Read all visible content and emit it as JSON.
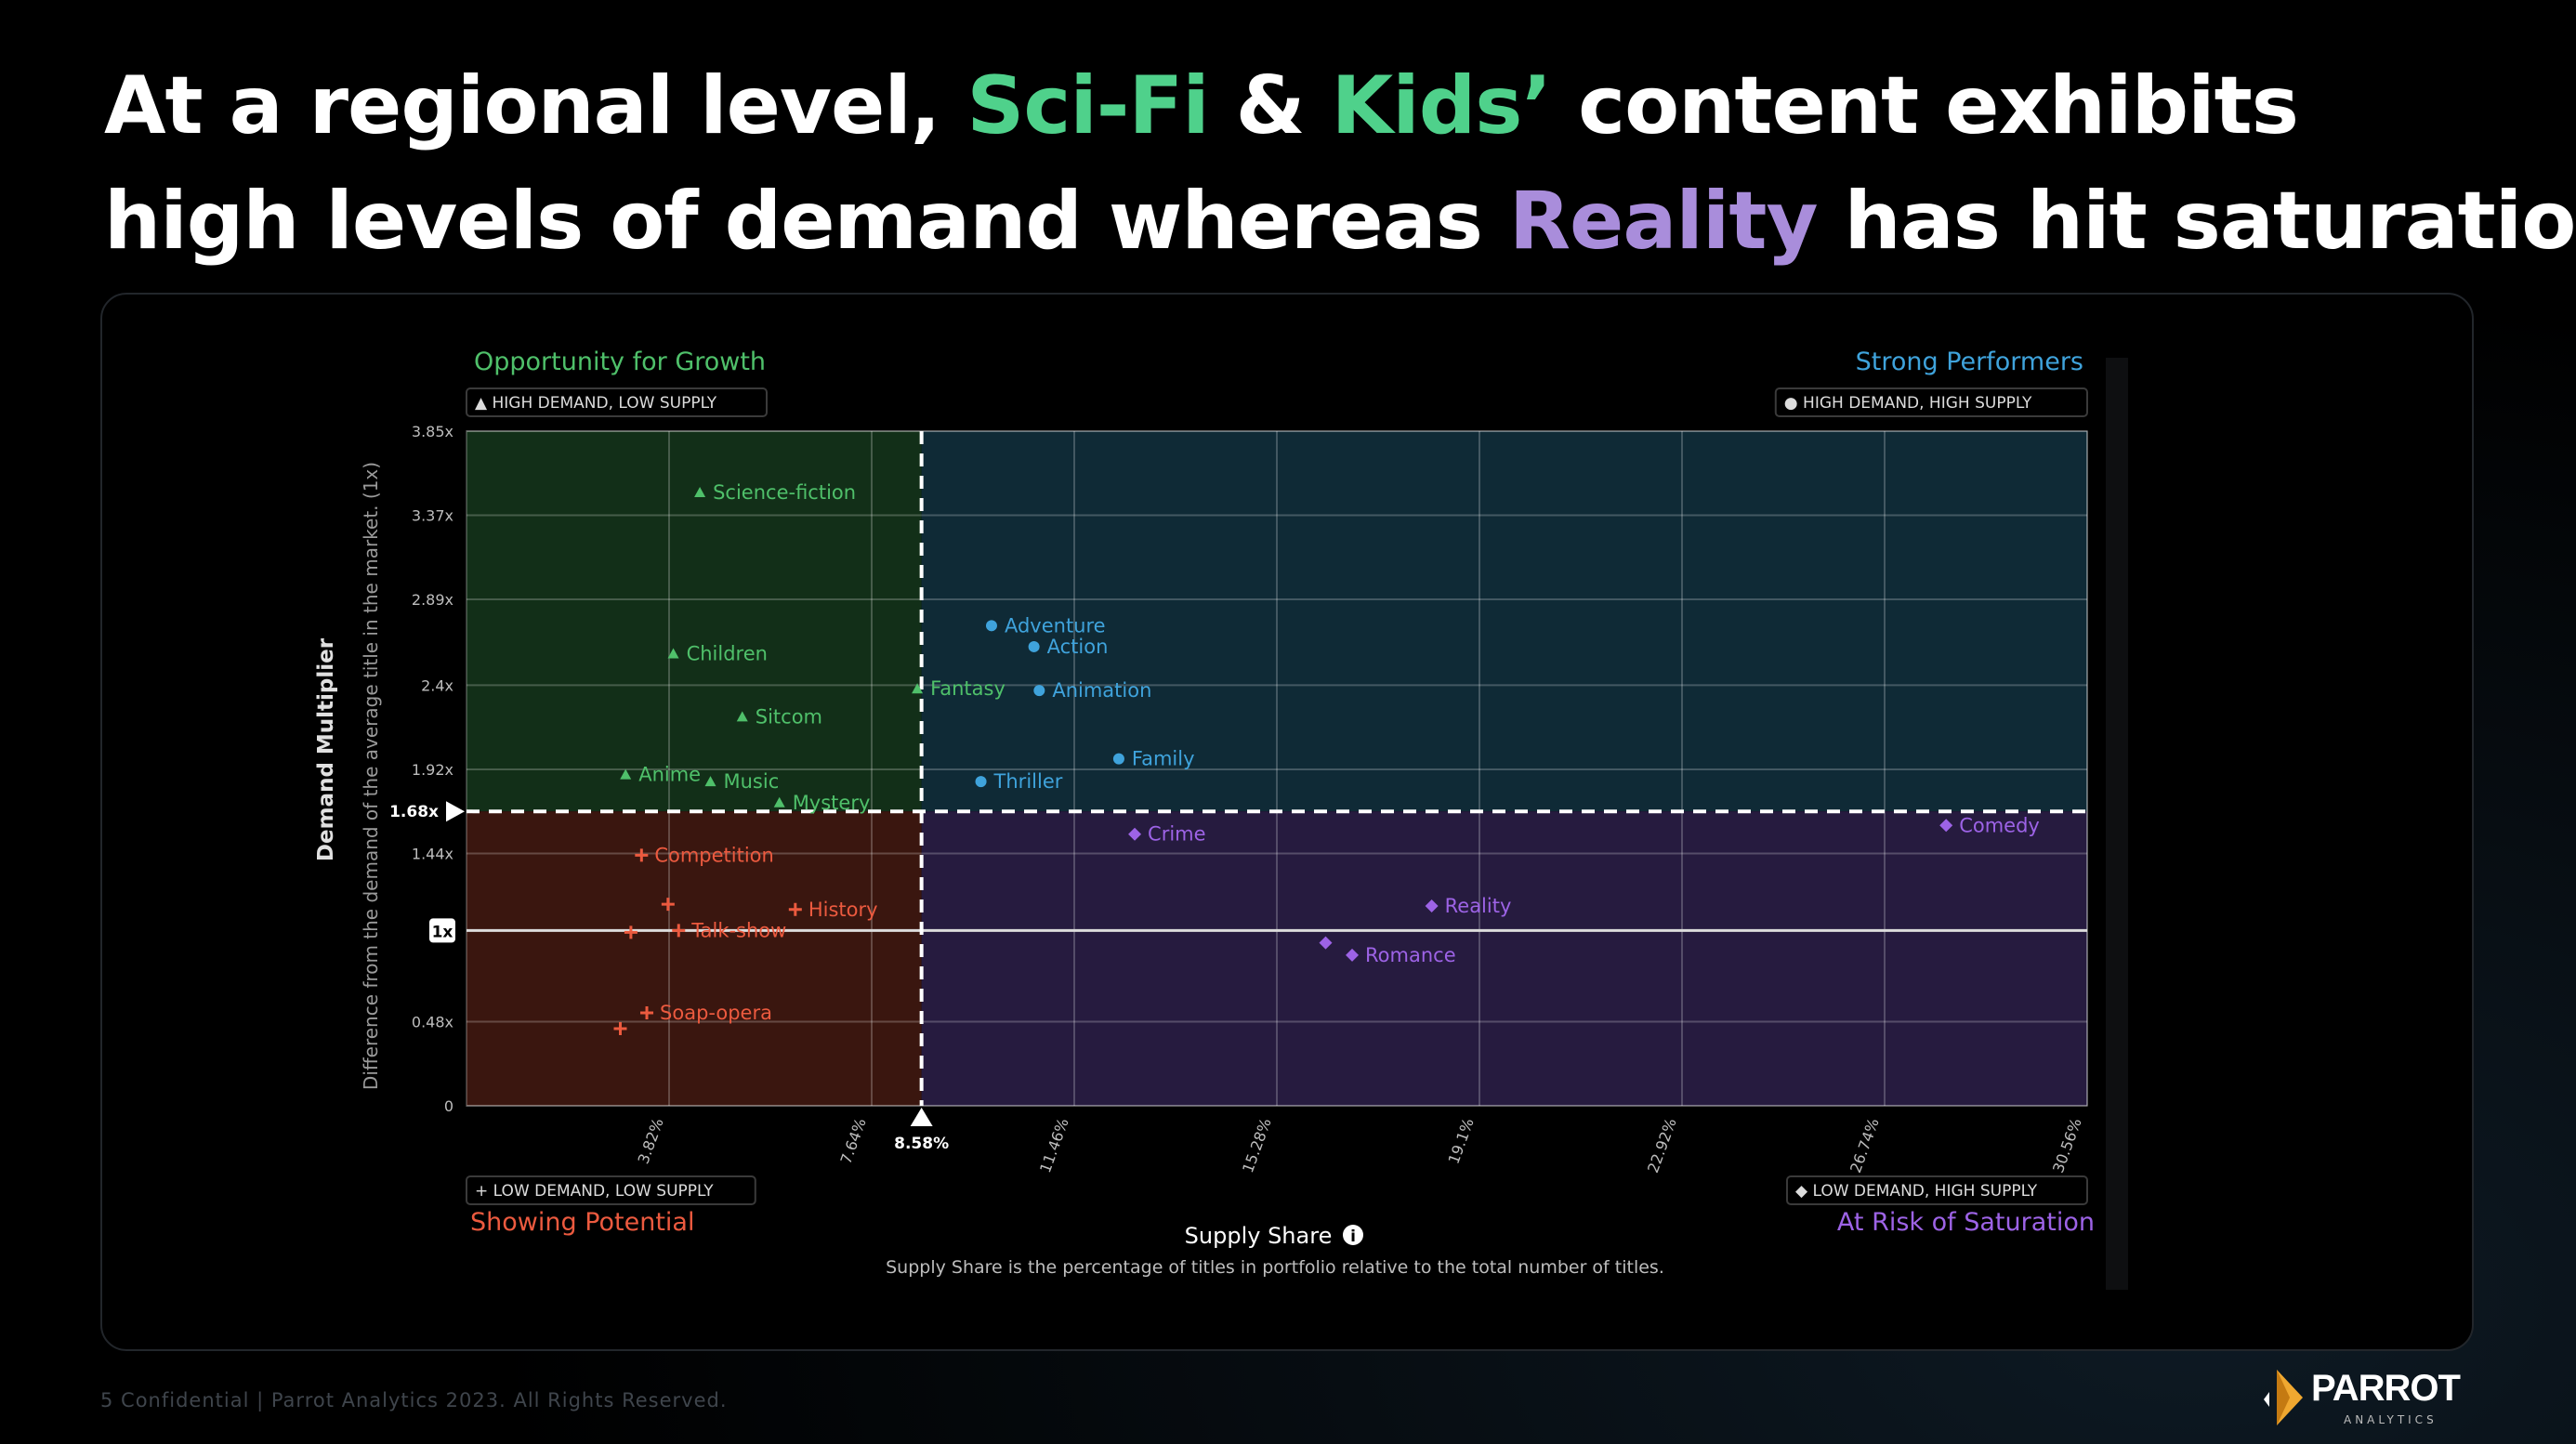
{
  "slide": {
    "title_line1": [
      {
        "text": "At a regional level, ",
        "color": "#ffffff"
      },
      {
        "text": "Sci-Fi",
        "color": "#4fd18b"
      },
      {
        "text": " & ",
        "color": "#ffffff"
      },
      {
        "text": "Kids’",
        "color": "#4fd18b"
      },
      {
        "text": " content exhibits",
        "color": "#ffffff"
      }
    ],
    "title_line2": [
      {
        "text": "high levels of demand whereas ",
        "color": "#ffffff"
      },
      {
        "text": "Reality",
        "color": "#a98ddb"
      },
      {
        "text": " has hit saturation",
        "color": "#ffffff"
      }
    ],
    "footer": "5  Confidential  |  Parrot Analytics 2023. All Rights Reserved.",
    "logo": {
      "name": "PARROT",
      "sub": "ANALYTICS",
      "icon": "parrot-logo-icon"
    }
  },
  "chart_data": {
    "type": "scatter",
    "title": "",
    "xlabel": "Supply Share",
    "xlabel_info_icon": "info-icon",
    "x_note": "Supply Share is the percentage of titles in portfolio relative to the total number of titles.",
    "ylabel": "Demand Multiplier",
    "ylabel_sub": "Difference from the demand of the average title in the market. (1x)",
    "xlim": [
      0,
      30.56
    ],
    "ylim": [
      0,
      3.85
    ],
    "x_ticks": [
      {
        "v": 3.82,
        "label": "3.82%"
      },
      {
        "v": 7.64,
        "label": "7.64%"
      },
      {
        "v": 11.46,
        "label": "11.46%"
      },
      {
        "v": 15.28,
        "label": "15.28%"
      },
      {
        "v": 19.1,
        "label": "19.1%"
      },
      {
        "v": 22.92,
        "label": "22.92%"
      },
      {
        "v": 26.74,
        "label": "26.74%"
      },
      {
        "v": 30.56,
        "label": "30.56%"
      }
    ],
    "y_ticks": [
      {
        "v": 0,
        "label": "0"
      },
      {
        "v": 0.48,
        "label": "0.48x"
      },
      {
        "v": 1.44,
        "label": "1.44x"
      },
      {
        "v": 1.92,
        "label": "1.92x"
      },
      {
        "v": 2.4,
        "label": "2.4x"
      },
      {
        "v": 2.89,
        "label": "2.89x"
      },
      {
        "v": 3.37,
        "label": "3.37x"
      },
      {
        "v": 3.85,
        "label": "3.85x"
      }
    ],
    "x_threshold": {
      "v": 8.58,
      "label": "8.58%"
    },
    "y_threshold": {
      "v": 1.68,
      "label": "1.68x"
    },
    "y_baseline": {
      "v": 1.0,
      "label": "1x"
    },
    "quadrants": {
      "top_left": {
        "title": "Opportunity for Growth",
        "badge": "▲ HIGH DEMAND, LOW SUPPLY",
        "color": "#4fc06a",
        "fill": "#122f18"
      },
      "top_right": {
        "title": "Strong Performers",
        "badge": "● HIGH DEMAND, HIGH SUPPLY",
        "color": "#3fa3dc",
        "fill": "#0f2a36"
      },
      "bottom_left": {
        "title": "Showing Potential",
        "badge": "+ LOW DEMAND, LOW SUPPLY",
        "color": "#ec5a3f",
        "fill": "#3a160f"
      },
      "bottom_right": {
        "title": "At Risk of Saturation",
        "badge": "◆ LOW DEMAND, HIGH SUPPLY",
        "color": "#9d63e6",
        "fill": "#261b3f"
      }
    },
    "points": [
      {
        "label": "Science-fiction",
        "x": 4.4,
        "y": 3.5,
        "group": "top_left"
      },
      {
        "label": "Children",
        "x": 3.9,
        "y": 2.58,
        "group": "top_left"
      },
      {
        "label": "Sitcom",
        "x": 5.2,
        "y": 2.22,
        "group": "top_left"
      },
      {
        "label": "Fantasy",
        "x": 8.5,
        "y": 2.38,
        "group": "top_left"
      },
      {
        "label": "Anime",
        "x": 3.0,
        "y": 1.89,
        "group": "top_left"
      },
      {
        "label": "Music",
        "x": 4.6,
        "y": 1.85,
        "group": "top_left"
      },
      {
        "label": "Mystery",
        "x": 5.9,
        "y": 1.73,
        "group": "top_left"
      },
      {
        "label": "Adventure",
        "x": 9.9,
        "y": 2.74,
        "group": "top_right"
      },
      {
        "label": "Action",
        "x": 10.7,
        "y": 2.62,
        "group": "top_right"
      },
      {
        "label": "Animation",
        "x": 10.8,
        "y": 2.37,
        "group": "top_right"
      },
      {
        "label": "Family",
        "x": 12.3,
        "y": 1.98,
        "group": "top_right"
      },
      {
        "label": "Thriller",
        "x": 9.7,
        "y": 1.85,
        "group": "top_right"
      },
      {
        "label": "Competition",
        "x": 3.3,
        "y": 1.43,
        "group": "bottom_left"
      },
      {
        "label": "",
        "x": 3.8,
        "y": 1.15,
        "group": "bottom_left"
      },
      {
        "label": "History",
        "x": 6.2,
        "y": 1.12,
        "group": "bottom_left"
      },
      {
        "label": "",
        "x": 3.1,
        "y": 0.99,
        "group": "bottom_left"
      },
      {
        "label": "Talk-show",
        "x": 4.0,
        "y": 1.0,
        "group": "bottom_left"
      },
      {
        "label": "Soap-opera",
        "x": 3.4,
        "y": 0.53,
        "group": "bottom_left"
      },
      {
        "label": "",
        "x": 2.9,
        "y": 0.44,
        "group": "bottom_left"
      },
      {
        "label": "Crime",
        "x": 12.6,
        "y": 1.55,
        "group": "bottom_right"
      },
      {
        "label": "Comedy",
        "x": 27.9,
        "y": 1.6,
        "group": "bottom_right"
      },
      {
        "label": "Reality",
        "x": 18.2,
        "y": 1.14,
        "group": "bottom_right"
      },
      {
        "label": "",
        "x": 16.2,
        "y": 0.93,
        "group": "bottom_right"
      },
      {
        "label": "Romance",
        "x": 16.7,
        "y": 0.86,
        "group": "bottom_right"
      }
    ]
  }
}
